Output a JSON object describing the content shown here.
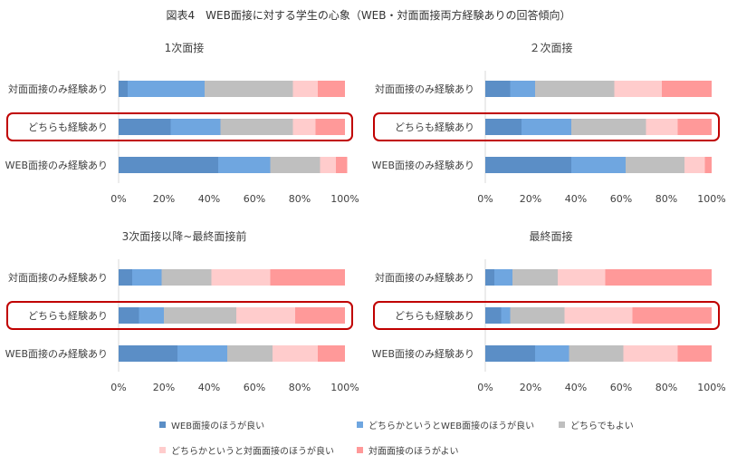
{
  "figure_title": "図表4　WEB面接に対する学生の心象（WEB・対面面接両方経験ありの回答傾向）",
  "legend": [
    {
      "label": "WEB面接のほうが良い",
      "color": "#5b8ec6"
    },
    {
      "label": "どちらかというとWEB面接のほうが良い",
      "color": "#6fa6e0"
    },
    {
      "label": "どちらでもよい",
      "color": "#bfbfbf"
    },
    {
      "label": "どちらかというと対面面接のほうが良い",
      "color": "#ffcccc"
    },
    {
      "label": "対面面接のほうがよい",
      "color": "#ff9999"
    }
  ],
  "highlight_color": "#c00000",
  "chart_data": [
    {
      "type": "bar",
      "stacked": "horizontal-100%",
      "title": "1次面接",
      "categories": [
        "対面面接のみ経験あり",
        "どちらも経験あり",
        "WEB面接のみ経験あり"
      ],
      "highlight_category": "どちらも経験あり",
      "xlim": [
        0,
        100
      ],
      "xticks": [
        "0%",
        "20%",
        "40%",
        "60%",
        "80%",
        "100%"
      ],
      "series": [
        {
          "name": "WEB面接のほうが良い",
          "values": [
            4,
            23,
            44
          ]
        },
        {
          "name": "どちらかというとWEB面接のほうが良い",
          "values": [
            34,
            22,
            23
          ]
        },
        {
          "name": "どちらでもよい",
          "values": [
            39,
            32,
            22
          ]
        },
        {
          "name": "どちらかというと対面面接のほうが良い",
          "values": [
            11,
            10,
            7
          ]
        },
        {
          "name": "対面面接のほうがよい",
          "values": [
            12,
            13,
            5
          ]
        }
      ]
    },
    {
      "type": "bar",
      "stacked": "horizontal-100%",
      "title": "２次面接",
      "categories": [
        "対面面接のみ経験あり",
        "どちらも経験あり",
        "WEB面接のみ経験あり"
      ],
      "highlight_category": "どちらも経験あり",
      "xlim": [
        0,
        100
      ],
      "xticks": [
        "0%",
        "20%",
        "40%",
        "60%",
        "80%",
        "100%"
      ],
      "series": [
        {
          "name": "WEB面接のほうが良い",
          "values": [
            11,
            16,
            38
          ]
        },
        {
          "name": "どちらかというとWEB面接のほうが良い",
          "values": [
            11,
            22,
            24
          ]
        },
        {
          "name": "どちらでもよい",
          "values": [
            35,
            33,
            26
          ]
        },
        {
          "name": "どちらかというと対面面接のほうが良い",
          "values": [
            21,
            14,
            9
          ]
        },
        {
          "name": "対面面接のほうがよい",
          "values": [
            22,
            15,
            3
          ]
        }
      ]
    },
    {
      "type": "bar",
      "stacked": "horizontal-100%",
      "title": "3次面接以降~最終面接前",
      "categories": [
        "対面面接のみ経験あり",
        "どちらも経験あり",
        "WEB面接のみ経験あり"
      ],
      "highlight_category": "どちらも経験あり",
      "xlim": [
        0,
        100
      ],
      "xticks": [
        "0%",
        "20%",
        "40%",
        "60%",
        "80%",
        "100%"
      ],
      "series": [
        {
          "name": "WEB面接のほうが良い",
          "values": [
            6,
            9,
            26
          ]
        },
        {
          "name": "どちらかというとWEB面接のほうが良い",
          "values": [
            13,
            11,
            22
          ]
        },
        {
          "name": "どちらでもよい",
          "values": [
            22,
            32,
            20
          ]
        },
        {
          "name": "どちらかというと対面面接のほうが良い",
          "values": [
            26,
            26,
            20
          ]
        },
        {
          "name": "対面面接のほうがよい",
          "values": [
            33,
            22,
            12
          ]
        }
      ]
    },
    {
      "type": "bar",
      "stacked": "horizontal-100%",
      "title": "最終面接",
      "categories": [
        "対面面接のみ経験あり",
        "どちらも経験あり",
        "WEB面接のみ経験あり"
      ],
      "highlight_category": "どちらも経験あり",
      "xlim": [
        0,
        100
      ],
      "xticks": [
        "0%",
        "20%",
        "40%",
        "60%",
        "80%",
        "100%"
      ],
      "series": [
        {
          "name": "WEB面接のほうが良い",
          "values": [
            4,
            7,
            22
          ]
        },
        {
          "name": "どちらかというとWEB面接のほうが良い",
          "values": [
            8,
            4,
            15
          ]
        },
        {
          "name": "どちらでもよい",
          "values": [
            20,
            24,
            24
          ]
        },
        {
          "name": "どちらかというと対面面接のほうが良い",
          "values": [
            21,
            30,
            24
          ]
        },
        {
          "name": "対面面接のほうがよい",
          "values": [
            47,
            35,
            15
          ]
        }
      ]
    }
  ]
}
